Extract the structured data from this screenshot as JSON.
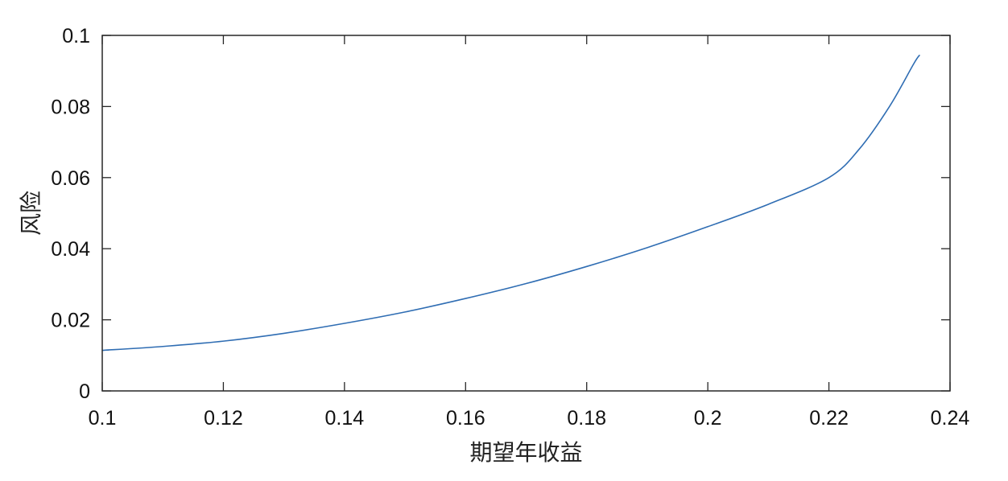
{
  "chart_data": {
    "type": "line",
    "title": "",
    "xlabel": "期望年收益",
    "ylabel": "风险",
    "xlim": [
      0.1,
      0.24
    ],
    "ylim": [
      0,
      0.1
    ],
    "x_ticks": [
      0.1,
      0.12,
      0.14,
      0.16,
      0.18,
      0.2,
      0.22,
      0.24
    ],
    "x_tick_labels": [
      "0.1",
      "0.12",
      "0.14",
      "0.16",
      "0.18",
      "0.2",
      "0.22",
      "0.24"
    ],
    "y_ticks": [
      0,
      0.02,
      0.04,
      0.06,
      0.08,
      0.1
    ],
    "y_tick_labels": [
      "0",
      "0.02",
      "0.04",
      "0.06",
      "0.08",
      "0.1"
    ],
    "grid": false,
    "box": true,
    "series": [
      {
        "color": "#2f6db3",
        "x": [
          0.1,
          0.11,
          0.12,
          0.13,
          0.14,
          0.15,
          0.16,
          0.17,
          0.18,
          0.19,
          0.2,
          0.21,
          0.22,
          0.225,
          0.23,
          0.234,
          0.235
        ],
        "y": [
          0.0114,
          0.0125,
          0.014,
          0.0162,
          0.019,
          0.0222,
          0.026,
          0.0302,
          0.035,
          0.0403,
          0.0462,
          0.0525,
          0.06,
          0.068,
          0.08,
          0.092,
          0.0945
        ]
      }
    ]
  }
}
